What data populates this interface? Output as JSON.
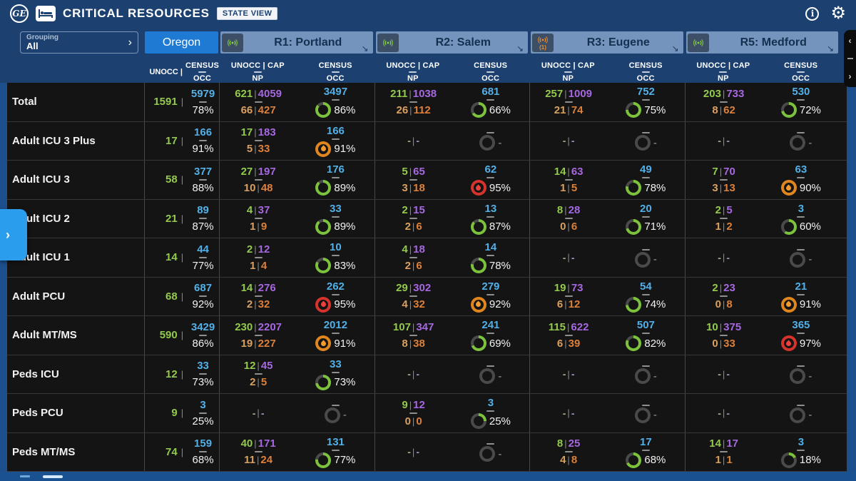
{
  "app": {
    "logo": "GE",
    "title": "CRITICAL RESOURCES",
    "view_badge": "STATE VIEW"
  },
  "grouping": {
    "label": "Grouping",
    "value": "All",
    "chevron": "›"
  },
  "state_tab": {
    "label": "Oregon"
  },
  "oregon_subheader": {
    "unocc": "UNOCC |",
    "census_top": "CENSUS",
    "census_bottom": "OCC"
  },
  "region_subheader": {
    "unocc_top": "UNOCC | CAP",
    "unocc_bottom": "NP",
    "census_top": "CENSUS",
    "census_bottom": "OCC"
  },
  "regions": [
    {
      "label": "R1: Portland",
      "signal": "green",
      "alert_count": ""
    },
    {
      "label": "R2: Salem",
      "signal": "green",
      "alert_count": ""
    },
    {
      "label": "R3: Eugene",
      "signal": "orange",
      "alert_count": "(1)"
    },
    {
      "label": "R5: Medford",
      "signal": "green",
      "alert_count": ""
    }
  ],
  "colors": {
    "ring_green": "#7dc23d",
    "ring_orange": "#e0861f",
    "ring_red": "#d6332d",
    "ring_track": "#4a4a4a"
  },
  "side_controls": {
    "left_flyout_chevron": "›",
    "right_collapse": "‹",
    "right_expand": "›"
  },
  "rows": [
    {
      "label": "Total",
      "oregon": {
        "unocc": "1591",
        "census": "5979",
        "occ": "78%"
      },
      "regions": [
        {
          "empty": false,
          "unocc": "621",
          "cap": "4059",
          "np_num": "66",
          "np_den": "427",
          "census": "3497",
          "occ": "86%",
          "occ_pct": 86,
          "status": "green"
        },
        {
          "empty": false,
          "unocc": "211",
          "cap": "1038",
          "np_num": "26",
          "np_den": "112",
          "census": "681",
          "occ": "66%",
          "occ_pct": 66,
          "status": "green"
        },
        {
          "empty": false,
          "unocc": "257",
          "cap": "1009",
          "np_num": "21",
          "np_den": "74",
          "census": "752",
          "occ": "75%",
          "occ_pct": 75,
          "status": "green"
        },
        {
          "empty": false,
          "unocc": "203",
          "cap": "733",
          "np_num": "8",
          "np_den": "62",
          "census": "530",
          "occ": "72%",
          "occ_pct": 72,
          "status": "green"
        }
      ]
    },
    {
      "label": "Adult ICU 3 Plus",
      "oregon": {
        "unocc": "17",
        "census": "166",
        "occ": "91%"
      },
      "regions": [
        {
          "empty": false,
          "unocc": "17",
          "cap": "183",
          "np_num": "5",
          "np_den": "33",
          "census": "166",
          "occ": "91%",
          "occ_pct": 100,
          "status": "orange"
        },
        {
          "empty": true
        },
        {
          "empty": true
        },
        {
          "empty": true
        }
      ]
    },
    {
      "label": "Adult ICU 3",
      "oregon": {
        "unocc": "58",
        "census": "377",
        "occ": "88%"
      },
      "regions": [
        {
          "empty": false,
          "unocc": "27",
          "cap": "197",
          "np_num": "10",
          "np_den": "48",
          "census": "176",
          "occ": "89%",
          "occ_pct": 89,
          "status": "green"
        },
        {
          "empty": false,
          "unocc": "5",
          "cap": "65",
          "np_num": "3",
          "np_den": "18",
          "census": "62",
          "occ": "95%",
          "occ_pct": 100,
          "status": "red"
        },
        {
          "empty": false,
          "unocc": "14",
          "cap": "63",
          "np_num": "1",
          "np_den": "5",
          "census": "49",
          "occ": "78%",
          "occ_pct": 78,
          "status": "green"
        },
        {
          "empty": false,
          "unocc": "7",
          "cap": "70",
          "np_num": "3",
          "np_den": "13",
          "census": "63",
          "occ": "90%",
          "occ_pct": 100,
          "status": "orange"
        }
      ]
    },
    {
      "label": "Adult ICU 2",
      "oregon": {
        "unocc": "21",
        "census": "89",
        "occ": "87%"
      },
      "regions": [
        {
          "empty": false,
          "unocc": "4",
          "cap": "37",
          "np_num": "1",
          "np_den": "9",
          "census": "33",
          "occ": "89%",
          "occ_pct": 89,
          "status": "green"
        },
        {
          "empty": false,
          "unocc": "2",
          "cap": "15",
          "np_num": "2",
          "np_den": "6",
          "census": "13",
          "occ": "87%",
          "occ_pct": 87,
          "status": "green"
        },
        {
          "empty": false,
          "unocc": "8",
          "cap": "28",
          "np_num": "0",
          "np_den": "6",
          "census": "20",
          "occ": "71%",
          "occ_pct": 71,
          "status": "green"
        },
        {
          "empty": false,
          "unocc": "2",
          "cap": "5",
          "np_num": "1",
          "np_den": "2",
          "census": "3",
          "occ": "60%",
          "occ_pct": 60,
          "status": "green"
        }
      ]
    },
    {
      "label": "Adult ICU 1",
      "oregon": {
        "unocc": "14",
        "census": "44",
        "occ": "77%"
      },
      "regions": [
        {
          "empty": false,
          "unocc": "2",
          "cap": "12",
          "np_num": "1",
          "np_den": "4",
          "census": "10",
          "occ": "83%",
          "occ_pct": 83,
          "status": "green"
        },
        {
          "empty": false,
          "unocc": "4",
          "cap": "18",
          "np_num": "2",
          "np_den": "6",
          "census": "14",
          "occ": "78%",
          "occ_pct": 78,
          "status": "green"
        },
        {
          "empty": true
        },
        {
          "empty": true
        }
      ]
    },
    {
      "label": "Adult PCU",
      "oregon": {
        "unocc": "68",
        "census": "687",
        "occ": "92%"
      },
      "regions": [
        {
          "empty": false,
          "unocc": "14",
          "cap": "276",
          "np_num": "2",
          "np_den": "32",
          "census": "262",
          "occ": "95%",
          "occ_pct": 100,
          "status": "red"
        },
        {
          "empty": false,
          "unocc": "29",
          "cap": "302",
          "np_num": "4",
          "np_den": "32",
          "census": "279",
          "occ": "92%",
          "occ_pct": 100,
          "status": "orange"
        },
        {
          "empty": false,
          "unocc": "19",
          "cap": "73",
          "np_num": "6",
          "np_den": "12",
          "census": "54",
          "occ": "74%",
          "occ_pct": 74,
          "status": "green"
        },
        {
          "empty": false,
          "unocc": "2",
          "cap": "23",
          "np_num": "0",
          "np_den": "8",
          "census": "21",
          "occ": "91%",
          "occ_pct": 100,
          "status": "orange"
        }
      ]
    },
    {
      "label": "Adult MT/MS",
      "oregon": {
        "unocc": "590",
        "census": "3429",
        "occ": "86%"
      },
      "regions": [
        {
          "empty": false,
          "unocc": "230",
          "cap": "2207",
          "np_num": "19",
          "np_den": "227",
          "census": "2012",
          "occ": "91%",
          "occ_pct": 100,
          "status": "orange"
        },
        {
          "empty": false,
          "unocc": "107",
          "cap": "347",
          "np_num": "8",
          "np_den": "38",
          "census": "241",
          "occ": "69%",
          "occ_pct": 69,
          "status": "green"
        },
        {
          "empty": false,
          "unocc": "115",
          "cap": "622",
          "np_num": "6",
          "np_den": "39",
          "census": "507",
          "occ": "82%",
          "occ_pct": 82,
          "status": "green"
        },
        {
          "empty": false,
          "unocc": "10",
          "cap": "375",
          "np_num": "0",
          "np_den": "33",
          "census": "365",
          "occ": "97%",
          "occ_pct": 100,
          "status": "red"
        }
      ]
    },
    {
      "label": "Peds ICU",
      "oregon": {
        "unocc": "12",
        "census": "33",
        "occ": "73%"
      },
      "regions": [
        {
          "empty": false,
          "unocc": "12",
          "cap": "45",
          "np_num": "2",
          "np_den": "5",
          "census": "33",
          "occ": "73%",
          "occ_pct": 73,
          "status": "green"
        },
        {
          "empty": true
        },
        {
          "empty": true
        },
        {
          "empty": true
        }
      ]
    },
    {
      "label": "Peds PCU",
      "oregon": {
        "unocc": "9",
        "census": "3",
        "occ": "25%"
      },
      "regions": [
        {
          "empty": true
        },
        {
          "empty": false,
          "unocc": "9",
          "cap": "12",
          "np_num": "0",
          "np_den": "0",
          "census": "3",
          "occ": "25%",
          "occ_pct": 25,
          "status": "green"
        },
        {
          "empty": true
        },
        {
          "empty": true
        }
      ]
    },
    {
      "label": "Peds MT/MS",
      "oregon": {
        "unocc": "74",
        "census": "159",
        "occ": "68%"
      },
      "regions": [
        {
          "empty": false,
          "unocc": "40",
          "cap": "171",
          "np_num": "11",
          "np_den": "24",
          "census": "131",
          "occ": "77%",
          "occ_pct": 77,
          "status": "green"
        },
        {
          "empty": true
        },
        {
          "empty": false,
          "unocc": "8",
          "cap": "25",
          "np_num": "4",
          "np_den": "8",
          "census": "17",
          "occ": "68%",
          "occ_pct": 68,
          "status": "green"
        },
        {
          "empty": false,
          "unocc": "14",
          "cap": "17",
          "np_num": "1",
          "np_den": "1",
          "census": "3",
          "occ": "18%",
          "occ_pct": 18,
          "status": "green"
        }
      ]
    }
  ]
}
